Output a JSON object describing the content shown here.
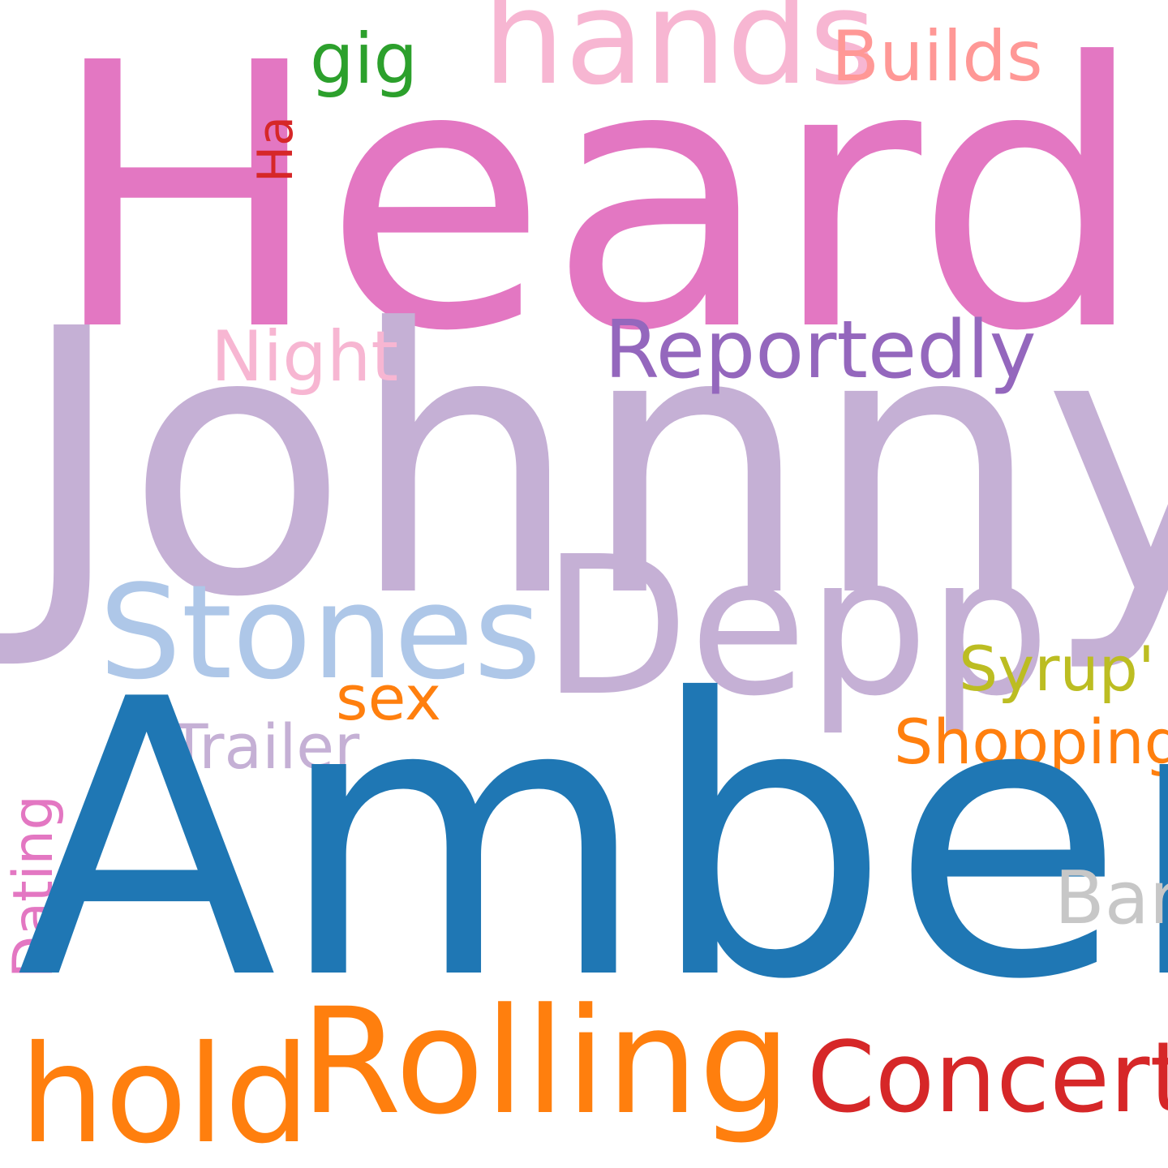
{
  "words": {
    "heard": {
      "text": "Heard",
      "color": "#e377c2"
    },
    "johnny": {
      "text": "Johnny",
      "color": "#c5b0d5"
    },
    "amber": {
      "text": "Amber",
      "color": "#1f77b4"
    },
    "depp": {
      "text": "Depp",
      "color": "#c5b0d5"
    },
    "stones": {
      "text": "Stones",
      "color": "#aec7e8"
    },
    "rolling": {
      "text": "Rolling",
      "color": "#ff7f0e"
    },
    "hold": {
      "text": "hold",
      "color": "#ff7f0e"
    },
    "concert": {
      "text": "Concert",
      "color": "#d62728"
    },
    "hands": {
      "text": "hands",
      "color": "#f7b6d2"
    },
    "reportedly": {
      "text": "Reportedly",
      "color": "#9467bd"
    },
    "builds": {
      "text": "Builds",
      "color": "#ff9896"
    },
    "gig": {
      "text": "gig",
      "color": "#2ca02c"
    },
    "ha": {
      "text": "Ha",
      "color": "#d62728"
    },
    "night": {
      "text": "Night",
      "color": "#f7b6d2"
    },
    "dating": {
      "text": "Dating",
      "color": "#e377c2"
    },
    "syrup": {
      "text": "Syrup'",
      "color": "#bcbd22"
    },
    "sex": {
      "text": "sex",
      "color": "#ff7f0e"
    },
    "shopping": {
      "text": "Shopping",
      "color": "#ff7f0e"
    },
    "trailer": {
      "text": "Trailer",
      "color": "#c5b0d5"
    },
    "bar": {
      "text": "Bar",
      "color": "#c7c7c7"
    }
  }
}
